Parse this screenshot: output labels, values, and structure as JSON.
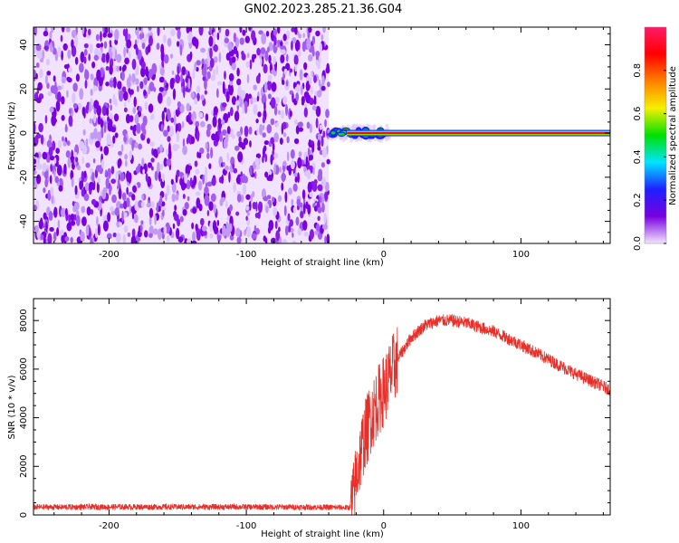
{
  "title": "GN02.2023.285.21.36.G04",
  "chart_data": [
    {
      "type": "heatmap",
      "xlabel": "Height of straight line (km)",
      "ylabel": "Frequency (Hz)",
      "xlim": [
        -255,
        165
      ],
      "ylim": [
        -50,
        48
      ],
      "x_ticks": [
        -200,
        -100,
        0,
        100
      ],
      "y_ticks": [
        -40,
        -20,
        0,
        20,
        40
      ],
      "noise_region_x": [
        -255,
        -40
      ],
      "transition_region_x": [
        -40,
        0
      ],
      "signal_line": {
        "x": [
          -40,
          165
        ],
        "frequency": 0
      },
      "colorbar": {
        "label": "Normalized spectral amplitude",
        "range": [
          0,
          1
        ],
        "ticks": [
          "0.0",
          "0.2",
          "0.4",
          "0.6",
          "0.8"
        ],
        "colors": [
          "#f2e6ff",
          "#7a00e0",
          "#1f1fff",
          "#00e5ff",
          "#00e000",
          "#f5f000",
          "#ff8000",
          "#ff0000",
          "#ff1a66"
        ]
      }
    },
    {
      "type": "line",
      "xlabel": "Height of straight line (km)",
      "ylabel": "SNR (10 * v/v)",
      "xlim": [
        -255,
        165
      ],
      "ylim": [
        0,
        8900
      ],
      "x_ticks": [
        -200,
        -100,
        0,
        100
      ],
      "y_ticks": [
        0,
        2000,
        4000,
        6000,
        8000
      ],
      "color": "#e8302a",
      "series": [
        {
          "x": [
            -255,
            -200,
            -150,
            -100,
            -50,
            -25,
            -22,
            -20,
            -15,
            -10,
            -5,
            0,
            10,
            20,
            30,
            40,
            50,
            60,
            80,
            100,
            120,
            140,
            165
          ],
          "values": [
            320,
            330,
            330,
            330,
            320,
            300,
            700,
            1600,
            3000,
            3900,
            4600,
            5100,
            6400,
            7300,
            7800,
            8000,
            8000,
            7900,
            7550,
            7000,
            6400,
            5800,
            5150
          ]
        }
      ]
    }
  ]
}
